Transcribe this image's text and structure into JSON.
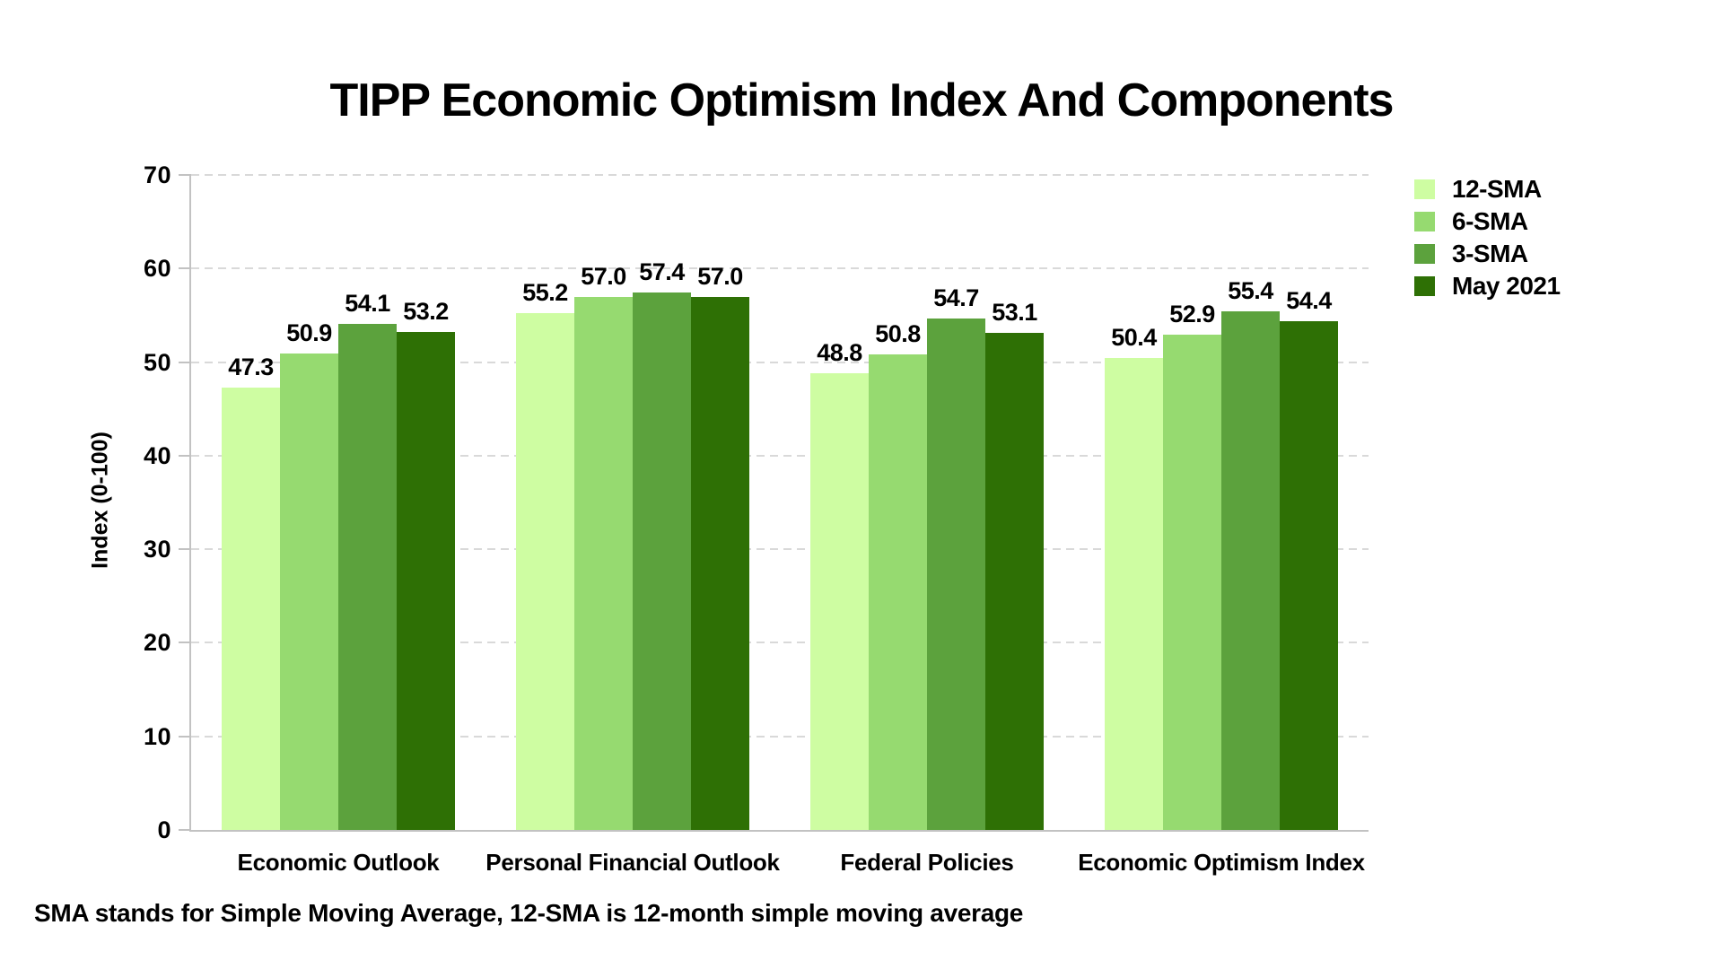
{
  "title": "TIPP Economic Optimism Index And Components",
  "footnote": "SMA stands for Simple Moving Average, 12-SMA is 12-month simple moving average",
  "colors": {
    "grid": "#d9d9d9",
    "axis": "#c2c2c2",
    "text": "#000000",
    "background": "#ffffff"
  },
  "chart_data": {
    "type": "bar",
    "title": "TIPP Economic Optimism Index And Components",
    "categories": [
      "Economic Outlook",
      "Personal Financial Outlook",
      "Federal Policies",
      "Economic Optimism Index"
    ],
    "series": [
      {
        "name": "12-SMA",
        "color": "#cefda2",
        "values": [
          47.3,
          55.2,
          48.8,
          50.4
        ]
      },
      {
        "name": "6-SMA",
        "color": "#96da70",
        "values": [
          50.9,
          57.0,
          50.8,
          52.9
        ]
      },
      {
        "name": "3-SMA",
        "color": "#5ca23d",
        "values": [
          54.1,
          57.4,
          54.7,
          55.4
        ]
      },
      {
        "name": "May 2021",
        "color": "#2e7005",
        "values": [
          53.2,
          57.0,
          53.1,
          54.4
        ]
      }
    ],
    "xlabel": "",
    "ylabel": "Index (0-100)",
    "ylim": [
      0,
      70
    ],
    "yticks": [
      0,
      10,
      20,
      30,
      40,
      50,
      60,
      70
    ],
    "value_label_decimals": 1,
    "grid": "horizontal-dashed",
    "legend_position": "upper-right-outside"
  }
}
